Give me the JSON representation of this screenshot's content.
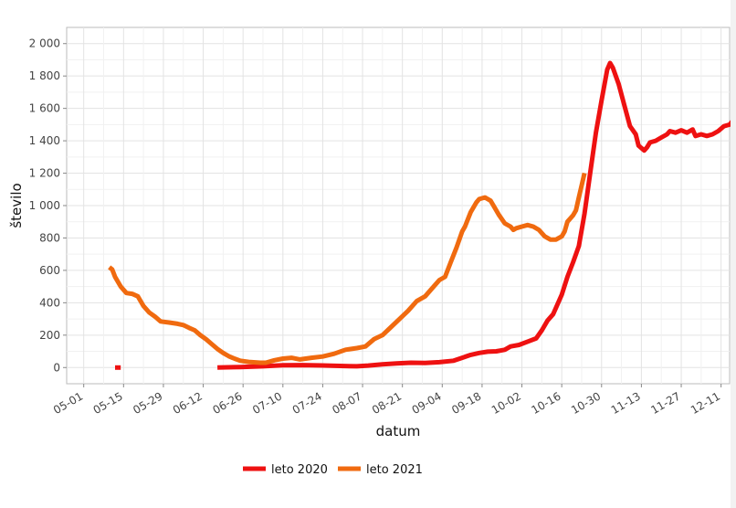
{
  "chart_data": {
    "type": "line",
    "title": "",
    "xlabel": "datum",
    "ylabel": "število",
    "ylim": [
      -100,
      2100
    ],
    "xlim_days": [
      -6,
      227
    ],
    "y_ticks": [
      {
        "value": 0,
        "label": "0"
      },
      {
        "value": 200,
        "label": "200"
      },
      {
        "value": 400,
        "label": "400"
      },
      {
        "value": 600,
        "label": "600"
      },
      {
        "value": 800,
        "label": "800"
      },
      {
        "value": 1000,
        "label": "1 000"
      },
      {
        "value": 1200,
        "label": "1 200"
      },
      {
        "value": 1400,
        "label": "1 400"
      },
      {
        "value": 1600,
        "label": "1 600"
      },
      {
        "value": 1800,
        "label": "1 800"
      },
      {
        "value": 2000,
        "label": "2 000"
      }
    ],
    "x_ticks": [
      {
        "day": 0,
        "label": "05-01"
      },
      {
        "day": 14,
        "label": "05-15"
      },
      {
        "day": 28,
        "label": "05-29"
      },
      {
        "day": 42,
        "label": "06-12"
      },
      {
        "day": 56,
        "label": "06-26"
      },
      {
        "day": 70,
        "label": "07-10"
      },
      {
        "day": 84,
        "label": "07-24"
      },
      {
        "day": 98,
        "label": "08-07"
      },
      {
        "day": 112,
        "label": "08-21"
      },
      {
        "day": 126,
        "label": "09-04"
      },
      {
        "day": 140,
        "label": "09-18"
      },
      {
        "day": 154,
        "label": "10-02"
      },
      {
        "day": 168,
        "label": "10-16"
      },
      {
        "day": 182,
        "label": "10-30"
      },
      {
        "day": 196,
        "label": "11-13"
      },
      {
        "day": 210,
        "label": "11-27"
      },
      {
        "day": 224,
        "label": "12-11"
      }
    ],
    "series": [
      {
        "name": "leto 2020",
        "color": "#ee1111",
        "segments": [
          [
            [
              11,
              0
            ],
            [
              13,
              0
            ]
          ],
          [
            [
              47,
              0
            ],
            [
              55,
              3
            ],
            [
              63,
              8
            ],
            [
              70,
              14
            ],
            [
              77,
              15
            ],
            [
              84,
              13
            ],
            [
              90,
              10
            ],
            [
              96,
              8
            ],
            [
              100,
              12
            ],
            [
              105,
              20
            ],
            [
              110,
              25
            ],
            [
              115,
              30
            ],
            [
              120,
              28
            ],
            [
              125,
              33
            ],
            [
              130,
              42
            ],
            [
              133,
              60
            ],
            [
              136,
              78
            ],
            [
              139,
              90
            ],
            [
              142,
              98
            ],
            [
              145,
              100
            ],
            [
              148,
              110
            ],
            [
              150,
              130
            ],
            [
              153,
              140
            ],
            [
              156,
              160
            ],
            [
              159,
              180
            ],
            [
              161,
              230
            ],
            [
              163,
              290
            ],
            [
              165,
              330
            ],
            [
              166,
              370
            ],
            [
              168,
              450
            ],
            [
              170,
              560
            ],
            [
              172,
              650
            ],
            [
              174,
              750
            ],
            [
              176,
              950
            ],
            [
              178,
              1200
            ],
            [
              180,
              1450
            ],
            [
              182,
              1650
            ],
            [
              184,
              1840
            ],
            [
              185,
              1880
            ],
            [
              186,
              1850
            ],
            [
              188,
              1750
            ],
            [
              190,
              1620
            ],
            [
              192,
              1490
            ],
            [
              194,
              1440
            ],
            [
              195,
              1370
            ],
            [
              197,
              1340
            ],
            [
              198,
              1360
            ],
            [
              199,
              1390
            ],
            [
              201,
              1400
            ],
            [
              203,
              1420
            ],
            [
              205,
              1440
            ],
            [
              206,
              1460
            ],
            [
              208,
              1450
            ],
            [
              210,
              1465
            ],
            [
              212,
              1450
            ],
            [
              214,
              1470
            ],
            [
              215,
              1430
            ],
            [
              217,
              1440
            ],
            [
              219,
              1430
            ],
            [
              221,
              1440
            ],
            [
              223,
              1460
            ],
            [
              225,
              1490
            ],
            [
              227,
              1500
            ],
            [
              228,
              1520
            ],
            [
              229,
              1500
            ],
            [
              231,
              1510
            ],
            [
              233,
              1520
            ]
          ]
        ]
      },
      {
        "name": "leto 2021",
        "color": "#f06a0f",
        "segments": [
          [
            [
              9,
              620
            ],
            [
              10,
              605
            ],
            [
              11,
              560
            ],
            [
              13,
              500
            ],
            [
              15,
              460
            ],
            [
              17,
              455
            ],
            [
              19,
              440
            ],
            [
              21,
              380
            ],
            [
              23,
              340
            ],
            [
              25,
              315
            ],
            [
              27,
              285
            ],
            [
              30,
              278
            ],
            [
              33,
              270
            ],
            [
              35,
              262
            ],
            [
              37,
              245
            ],
            [
              39,
              230
            ],
            [
              41,
              200
            ],
            [
              43,
              175
            ],
            [
              45,
              145
            ],
            [
              47,
              115
            ],
            [
              49,
              90
            ],
            [
              51,
              70
            ],
            [
              53,
              55
            ],
            [
              55,
              42
            ],
            [
              58,
              35
            ],
            [
              62,
              30
            ],
            [
              64,
              30
            ],
            [
              67,
              45
            ],
            [
              70,
              55
            ],
            [
              73,
              60
            ],
            [
              76,
              50
            ],
            [
              80,
              60
            ],
            [
              84,
              68
            ],
            [
              88,
              85
            ],
            [
              92,
              110
            ],
            [
              96,
              120
            ],
            [
              99,
              130
            ],
            [
              102,
              175
            ],
            [
              105,
              200
            ],
            [
              108,
              250
            ],
            [
              111,
              300
            ],
            [
              114,
              350
            ],
            [
              117,
              410
            ],
            [
              120,
              440
            ],
            [
              122,
              480
            ],
            [
              125,
              540
            ],
            [
              127,
              560
            ],
            [
              129,
              650
            ],
            [
              131,
              740
            ],
            [
              133,
              840
            ],
            [
              134,
              870
            ],
            [
              136,
              960
            ],
            [
              138,
              1020
            ],
            [
              139,
              1040
            ],
            [
              141,
              1050
            ],
            [
              143,
              1030
            ],
            [
              144,
              1000
            ],
            [
              146,
              940
            ],
            [
              148,
              890
            ],
            [
              150,
              870
            ],
            [
              151,
              850
            ],
            [
              152,
              860
            ],
            [
              154,
              870
            ],
            [
              156,
              880
            ],
            [
              158,
              870
            ],
            [
              160,
              850
            ],
            [
              162,
              810
            ],
            [
              164,
              790
            ],
            [
              166,
              790
            ],
            [
              168,
              810
            ],
            [
              169,
              840
            ],
            [
              170,
              900
            ],
            [
              172,
              940
            ],
            [
              173,
              970
            ],
            [
              174,
              1050
            ],
            [
              176,
              1200
            ]
          ]
        ]
      }
    ]
  },
  "legend": {
    "items": [
      {
        "label": "leto 2020",
        "color": "#ee1111"
      },
      {
        "label": "leto 2021",
        "color": "#f06a0f"
      }
    ]
  }
}
